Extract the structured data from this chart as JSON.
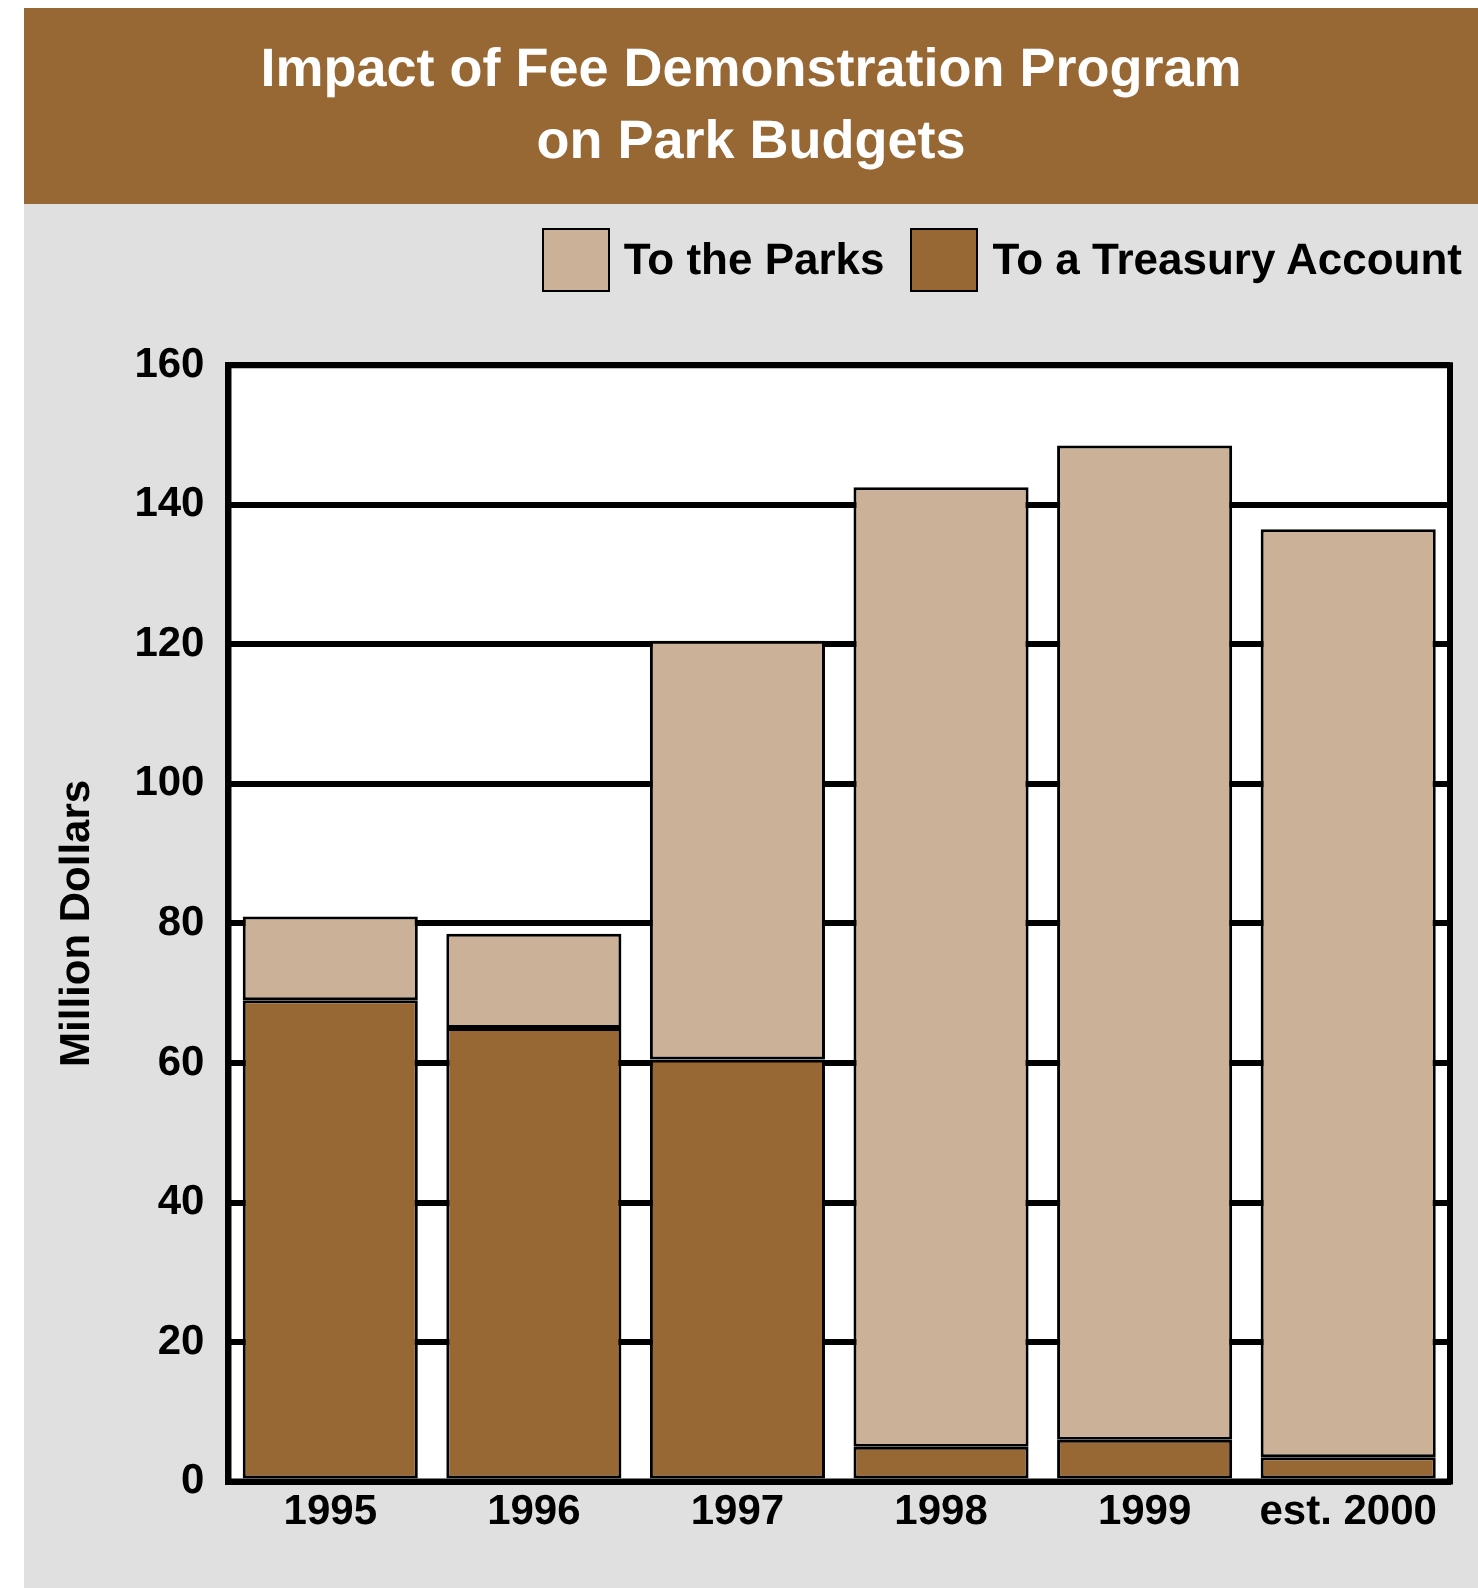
{
  "chart_data": {
    "type": "bar",
    "title": "Impact of Fee Demonstration Program\non Park Budgets",
    "ylabel": "Million Dollars",
    "categories": [
      "1995",
      "1996",
      "1997",
      "1998",
      "1999",
      "est. 2000"
    ],
    "stacked": true,
    "series": [
      {
        "name": "To a Treasury Account",
        "color": "#986834",
        "values": [
          69,
          65,
          60.5,
          5,
          6,
          3.5
        ]
      },
      {
        "name": "To the Parks",
        "color": "#cbb198",
        "values": [
          12,
          13.5,
          60,
          137.5,
          142.5,
          133
        ]
      }
    ],
    "ylim": [
      0,
      160
    ],
    "yticks": [
      0,
      20,
      40,
      60,
      80,
      100,
      120,
      140,
      160
    ],
    "grid": "y",
    "legend": "top right"
  }
}
